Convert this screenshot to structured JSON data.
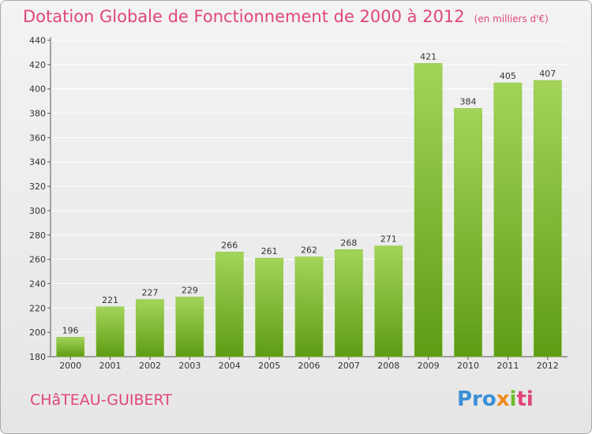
{
  "header": {
    "title": "Dotation Globale de Fonctionnement de 2000 à 2012",
    "subtitle": "(en milliers d'€)"
  },
  "footer": {
    "commune": "CHâTEAU-GUIBERT",
    "logo_letters": [
      "Pro",
      "x",
      "i",
      "ti"
    ]
  },
  "colors": {
    "title": "#e0457b",
    "bar_top": "#a3d45a",
    "bar_bottom": "#5e9c14",
    "grid": "#ffffff"
  },
  "chart_data": {
    "type": "bar",
    "categories": [
      "2000",
      "2001",
      "2002",
      "2003",
      "2004",
      "2005",
      "2006",
      "2007",
      "2008",
      "2009",
      "2010",
      "2011",
      "2012"
    ],
    "values": [
      196,
      221,
      227,
      229,
      266,
      261,
      262,
      268,
      271,
      421,
      384,
      405,
      407
    ],
    "ylim": [
      180,
      440
    ],
    "yticks": [
      180,
      200,
      220,
      240,
      260,
      280,
      300,
      320,
      340,
      360,
      380,
      400,
      420,
      440
    ],
    "grid": true,
    "xlabel": "",
    "ylabel": ""
  }
}
